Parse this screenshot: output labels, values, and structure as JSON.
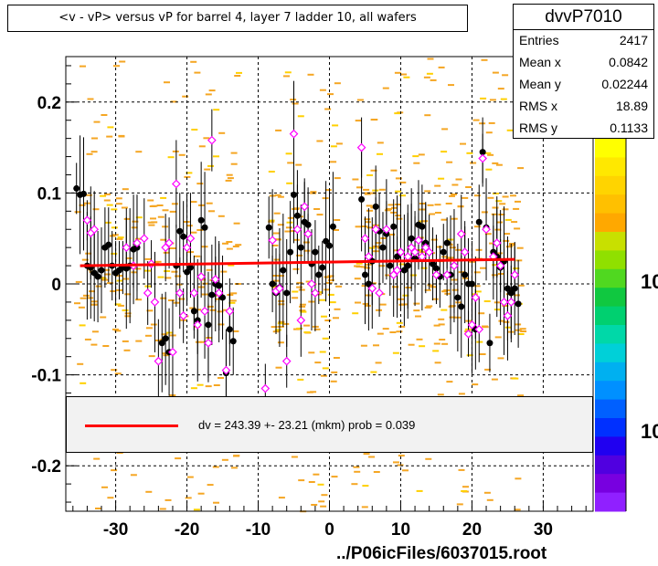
{
  "title": "<v - vP>       versus   vP for barrel 4, layer 7 ladder 10, all wafers",
  "stats": {
    "name": "dvvP7010",
    "rows": [
      {
        "label": "Entries",
        "value": "2417"
      },
      {
        "label": "Mean x",
        "value": "0.0842"
      },
      {
        "label": "Mean y",
        "value": "0.02244"
      },
      {
        "label": "RMS x",
        "value": "18.89"
      },
      {
        "label": "RMS y",
        "value": "0.1133"
      }
    ]
  },
  "fit_label": "dv =  243.39 +- 23.21 (mkm) prob = 0.039",
  "footer": "../P06icFiles/6037015.root",
  "palette_ticks": [
    "10",
    "10"
  ],
  "colors": {
    "background_hits": "#f5a623",
    "fit_line": "#ff0000",
    "profile_points": "#000000",
    "open_markers": "#ff00ff"
  },
  "chart_data": {
    "type": "scatter",
    "title": "<v - vP>       versus   vP for barrel 4, layer 7 ladder 10, all wafers",
    "xlabel": "",
    "ylabel": "",
    "xlim": [
      -37,
      37
    ],
    "ylim": [
      -0.25,
      0.25
    ],
    "x_ticks": [
      -30,
      -20,
      -10,
      0,
      10,
      20,
      30
    ],
    "x_tick_labels": [
      "-30",
      "-20",
      "-10",
      "0",
      "10",
      "20",
      "30"
    ],
    "y_ticks": [
      -0.2,
      -0.1,
      0,
      0.1,
      0.2
    ],
    "y_tick_labels": [
      "-0.2",
      "-0.1",
      "0",
      "0.1",
      "0.2"
    ],
    "grid": true,
    "fit": {
      "x": [
        -35,
        26
      ],
      "y": [
        0.02,
        0.027
      ]
    },
    "series": [
      {
        "marker": "filled-circle",
        "points": [
          [
            -35.5,
            0.105
          ],
          [
            -35.0,
            0.098
          ],
          [
            -34.5,
            0.099
          ],
          [
            -34.0,
            0.02
          ],
          [
            -33.5,
            0.018
          ],
          [
            -33.0,
            0.012
          ],
          [
            -32.5,
            0.008
          ],
          [
            -32.0,
            0.015
          ],
          [
            -31.5,
            0.04
          ],
          [
            -31.0,
            0.043
          ],
          [
            -30.5,
            0.02
          ],
          [
            -30.0,
            0.012
          ],
          [
            -29.5,
            0.015
          ],
          [
            -29.0,
            0.018
          ],
          [
            -28.5,
            0.017
          ],
          [
            -28.0,
            0.02
          ],
          [
            -27.5,
            0.038
          ],
          [
            -27.0,
            0.04
          ],
          [
            -23.5,
            -0.065
          ],
          [
            -23.0,
            -0.06
          ],
          [
            -22.5,
            -0.075
          ],
          [
            -21.5,
            0.02
          ],
          [
            -21.0,
            0.058
          ],
          [
            -20.5,
            0.052
          ],
          [
            -20.0,
            0.013
          ],
          [
            -19.5,
            0.018
          ],
          [
            -19.0,
            -0.03
          ],
          [
            -18.5,
            -0.04
          ],
          [
            -18.0,
            0.07
          ],
          [
            -17.5,
            0.062
          ],
          [
            -17.0,
            -0.045
          ],
          [
            -16.5,
            -0.012
          ],
          [
            -16.0,
            0.0
          ],
          [
            -15.5,
            -0.002
          ],
          [
            -15.0,
            -0.015
          ],
          [
            -14.5,
            -0.098
          ],
          [
            -14.0,
            -0.05
          ],
          [
            -13.5,
            -0.063
          ],
          [
            -8.5,
            0.062
          ],
          [
            -8.0,
            0.0
          ],
          [
            -7.5,
            -0.01
          ],
          [
            -7.0,
            -0.004
          ],
          [
            -6.5,
            0.015
          ],
          [
            -6.0,
            -0.01
          ],
          [
            -5.5,
            0.035
          ],
          [
            -5.0,
            0.098
          ],
          [
            -4.5,
            0.075
          ],
          [
            -4.0,
            0.04
          ],
          [
            -3.5,
            0.068
          ],
          [
            -3.0,
            0.065
          ],
          [
            -2.5,
            0.022
          ],
          [
            -2.0,
            0.035
          ],
          [
            -1.5,
            0.01
          ],
          [
            -1.0,
            0.018
          ],
          [
            -0.5,
            0.047
          ],
          [
            0.0,
            0.042
          ],
          [
            0.5,
            0.063
          ],
          [
            4.5,
            0.093
          ],
          [
            5.0,
            0.01
          ],
          [
            5.5,
            0.0
          ],
          [
            6.0,
            0.025
          ],
          [
            6.5,
            0.085
          ],
          [
            7.0,
            0.058
          ],
          [
            7.5,
            0.04
          ],
          [
            8.0,
            0.055
          ],
          [
            8.5,
            0.02
          ],
          [
            9.0,
            0.063
          ],
          [
            9.5,
            0.03
          ],
          [
            10.0,
            0.035
          ],
          [
            10.5,
            0.015
          ],
          [
            11.0,
            0.02
          ],
          [
            11.5,
            0.05
          ],
          [
            12.0,
            0.028
          ],
          [
            12.5,
            0.065
          ],
          [
            13.0,
            0.063
          ],
          [
            13.5,
            0.045
          ],
          [
            14.5,
            0.022
          ],
          [
            15.0,
            0.017
          ],
          [
            15.5,
            0.008
          ],
          [
            16.0,
            0.035
          ],
          [
            16.5,
            0.045
          ],
          [
            17.0,
            0.01
          ],
          [
            17.5,
            0.02
          ],
          [
            18.0,
            -0.015
          ],
          [
            18.5,
            -0.025
          ],
          [
            19.0,
            0.01
          ],
          [
            19.5,
            0.0
          ],
          [
            20.0,
            0.0
          ],
          [
            20.5,
            -0.05
          ],
          [
            21.0,
            0.068
          ],
          [
            21.5,
            0.145
          ],
          [
            22.0,
            0.062
          ],
          [
            22.5,
            -0.065
          ],
          [
            23.0,
            0.035
          ],
          [
            23.5,
            0.03
          ],
          [
            24.0,
            0.018
          ],
          [
            24.5,
            0.025
          ],
          [
            25.0,
            -0.005
          ],
          [
            25.5,
            -0.01
          ],
          [
            26.0,
            -0.005
          ],
          [
            26.5,
            -0.022
          ]
        ]
      },
      {
        "marker": "open-diamond",
        "points": [
          [
            -34.0,
            0.07
          ],
          [
            -33.5,
            0.056
          ],
          [
            -33.0,
            0.06
          ],
          [
            -28.5,
            0.04
          ],
          [
            -27.5,
            0.02
          ],
          [
            -27.0,
            0.045
          ],
          [
            -26.0,
            0.05
          ],
          [
            -25.5,
            -0.01
          ],
          [
            -25.0,
            0.022
          ],
          [
            -24.5,
            -0.02
          ],
          [
            -24.0,
            -0.085
          ],
          [
            -23.0,
            0.04
          ],
          [
            -22.5,
            0.045
          ],
          [
            -22.0,
            -0.075
          ],
          [
            -21.5,
            0.11
          ],
          [
            -21.0,
            -0.01
          ],
          [
            -20.5,
            -0.035
          ],
          [
            -20.0,
            0.04
          ],
          [
            -19.5,
            0.05
          ],
          [
            -19.0,
            -0.01
          ],
          [
            -18.5,
            -0.045
          ],
          [
            -18.0,
            0.008
          ],
          [
            -17.5,
            -0.03
          ],
          [
            -17.0,
            -0.065
          ],
          [
            -16.5,
            0.158
          ],
          [
            -16.0,
            0.005
          ],
          [
            -15.5,
            -0.01
          ],
          [
            -14.5,
            -0.095
          ],
          [
            -14.0,
            -0.03
          ],
          [
            -9.0,
            -0.115
          ],
          [
            -8.0,
            0.048
          ],
          [
            -7.5,
            -0.008
          ],
          [
            -7.0,
            -0.005
          ],
          [
            -6.0,
            -0.085
          ],
          [
            -5.0,
            0.165
          ],
          [
            -4.5,
            0.06
          ],
          [
            -4.0,
            -0.04
          ],
          [
            -3.5,
            0.085
          ],
          [
            -3.0,
            0.055
          ],
          [
            -2.5,
            0.0
          ],
          [
            -2.0,
            -0.01
          ],
          [
            4.5,
            0.15
          ],
          [
            5.0,
            0.05
          ],
          [
            5.5,
            0.03
          ],
          [
            6.0,
            -0.005
          ],
          [
            6.5,
            0.06
          ],
          [
            7.0,
            -0.01
          ],
          [
            8.0,
            0.06
          ],
          [
            9.0,
            0.01
          ],
          [
            9.5,
            0.015
          ],
          [
            10.0,
            0.035
          ],
          [
            11.0,
            0.03
          ],
          [
            11.5,
            0.04
          ],
          [
            12.0,
            0.035
          ],
          [
            12.5,
            0.048
          ],
          [
            13.0,
            0.03
          ],
          [
            13.5,
            0.04
          ],
          [
            14.0,
            0.035
          ],
          [
            15.0,
            0.01
          ],
          [
            16.5,
            0.01
          ],
          [
            17.5,
            0.02
          ],
          [
            18.5,
            0.055
          ],
          [
            19.0,
            0.035
          ],
          [
            19.5,
            -0.055
          ],
          [
            20.0,
            -0.045
          ],
          [
            20.5,
            -0.015
          ],
          [
            21.0,
            -0.05
          ],
          [
            21.5,
            0.138
          ],
          [
            22.0,
            0.06
          ],
          [
            23.0,
            0.03
          ],
          [
            23.5,
            0.045
          ],
          [
            24.0,
            0.02
          ],
          [
            24.5,
            -0.02
          ],
          [
            25.0,
            -0.035
          ],
          [
            25.5,
            -0.02
          ],
          [
            26.0,
            0.01
          ]
        ]
      }
    ]
  }
}
